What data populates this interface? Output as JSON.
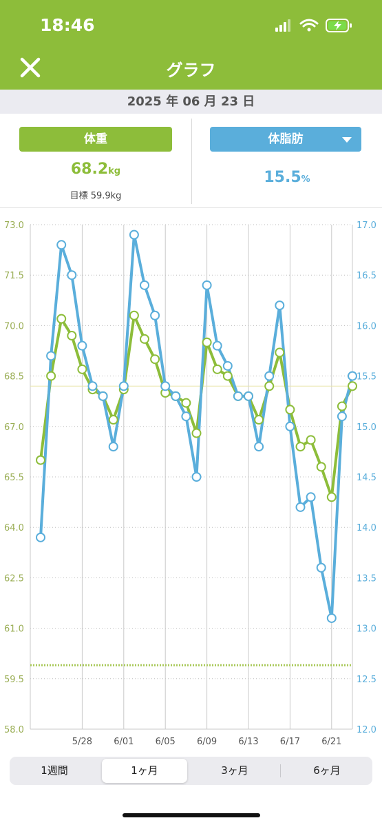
{
  "status_bar": {
    "time": "18:46",
    "icons": [
      "cellular-signal-icon",
      "wifi-icon",
      "battery-charging-icon"
    ]
  },
  "header": {
    "title": "グラフ",
    "close_icon": "close-icon"
  },
  "date": "2025 年 06 月 23 日",
  "weight_panel": {
    "label": "体重",
    "value": "68.2",
    "unit": "kg",
    "goal": "目標 59.9kg",
    "color": "#8dbd3a"
  },
  "fat_panel": {
    "label": "体脂肪",
    "value": "15.5",
    "unit": "%",
    "color": "#5aaedb"
  },
  "tabs": [
    {
      "label": "1週間",
      "active": false
    },
    {
      "label": "1ヶ月",
      "active": true
    },
    {
      "label": "3ヶ月",
      "active": false
    },
    {
      "label": "6ヶ月",
      "active": false
    }
  ],
  "chart_data": {
    "type": "line",
    "x": [
      "5/24",
      "5/25",
      "5/26",
      "5/27",
      "5/28",
      "5/29",
      "5/30",
      "5/31",
      "6/01",
      "6/02",
      "6/03",
      "6/04",
      "6/05",
      "6/06",
      "6/07",
      "6/08",
      "6/09",
      "6/10",
      "6/11",
      "6/12",
      "6/13",
      "6/14",
      "6/15",
      "6/16",
      "6/17",
      "6/18",
      "6/19",
      "6/20",
      "6/21",
      "6/22",
      "6/23"
    ],
    "x_tick_labels": [
      "5/28",
      "6/01",
      "6/05",
      "6/09",
      "6/13",
      "6/17",
      "6/21"
    ],
    "y_left": {
      "ticks": [
        "73.0",
        "71.5",
        "70.0",
        "68.5",
        "67.0",
        "65.5",
        "64.0",
        "62.5",
        "61.0",
        "59.5",
        "58.0"
      ],
      "range": [
        58.0,
        73.0
      ]
    },
    "y_right": {
      "ticks": [
        "17.0",
        "16.5",
        "16.0",
        "15.5",
        "15.0",
        "14.5",
        "14.0",
        "13.5",
        "13.0",
        "12.5",
        "12.0"
      ],
      "range": [
        12.0,
        17.0
      ]
    },
    "series": [
      {
        "axis": "left",
        "color": "#8dbd3a",
        "values": [
          66.0,
          68.5,
          70.2,
          69.7,
          68.7,
          68.1,
          67.9,
          67.2,
          68.1,
          70.3,
          69.6,
          69.0,
          68.0,
          67.9,
          67.7,
          66.8,
          69.5,
          68.7,
          68.5,
          67.9,
          67.9,
          67.2,
          68.2,
          69.2,
          67.5,
          66.4,
          66.6,
          65.8,
          64.9,
          67.6,
          68.2
        ]
      },
      {
        "axis": "right",
        "color": "#5aaedb",
        "values": [
          13.9,
          15.7,
          16.8,
          16.5,
          15.8,
          15.4,
          15.3,
          14.8,
          15.4,
          16.9,
          16.4,
          16.1,
          15.4,
          15.3,
          15.1,
          14.5,
          16.4,
          15.8,
          15.6,
          15.3,
          15.3,
          14.8,
          15.5,
          16.2,
          15.0,
          14.2,
          14.3,
          13.6,
          13.1,
          15.1,
          15.5
        ]
      }
    ],
    "reference_lines": [
      {
        "axis": "left",
        "value": 68.2,
        "style": "solid",
        "color": "#e8e6a8"
      },
      {
        "axis": "left",
        "value": 59.9,
        "style": "dotted",
        "color": "#a9c95a"
      }
    ],
    "grid": true
  }
}
